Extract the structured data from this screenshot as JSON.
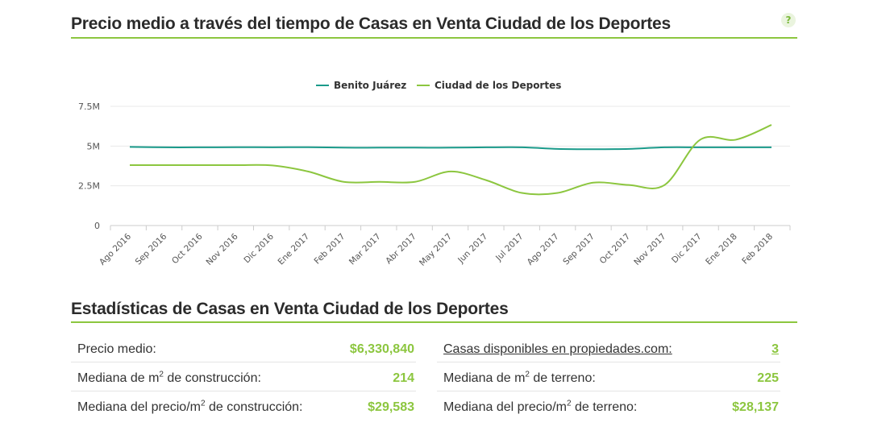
{
  "chart_section": {
    "title": "Precio medio a través del tiempo de Casas en Venta Ciudad de los Deportes",
    "help": "?"
  },
  "chart_data": {
    "type": "line",
    "title": "Precio medio a través del tiempo de Casas en Venta Ciudad de los Deportes",
    "xlabel": "",
    "ylabel": "",
    "x": [
      "Ago 2016",
      "Sep 2016",
      "Oct 2016",
      "Nov 2016",
      "Dic 2016",
      "Ene 2017",
      "Feb 2017",
      "Mar 2017",
      "Abr 2017",
      "May 2017",
      "Jun 2017",
      "Jul 2017",
      "Ago 2017",
      "Sep 2017",
      "Oct 2017",
      "Nov 2017",
      "Dic 2017",
      "Ene 2018",
      "Feb 2018"
    ],
    "series": [
      {
        "name": "Benito Juárez",
        "color": "#1a9a8a",
        "values": [
          4.95,
          4.92,
          4.92,
          4.93,
          4.92,
          4.93,
          4.9,
          4.9,
          4.9,
          4.9,
          4.92,
          4.92,
          4.82,
          4.8,
          4.82,
          4.92,
          4.92,
          4.92,
          4.92
        ]
      },
      {
        "name": "Ciudad de los Deportes",
        "color": "#8cc63f",
        "values": [
          3.8,
          3.8,
          3.8,
          3.8,
          3.78,
          3.4,
          2.75,
          2.75,
          2.75,
          3.4,
          2.85,
          2.05,
          2.05,
          2.7,
          2.55,
          2.55,
          5.4,
          5.4,
          6.33
        ]
      }
    ],
    "yticks": [
      0,
      2.5,
      5,
      7.5
    ],
    "ytick_labels": [
      "0",
      "2.5M",
      "5M",
      "7.5M"
    ],
    "ylim": [
      0,
      7.5
    ],
    "grid": true,
    "legend_position": "top-center"
  },
  "stats_section": {
    "title": "Estadísticas de Casas en Venta Ciudad de los Deportes",
    "left": [
      {
        "label": "Precio medio:",
        "value": "$6,330,840"
      },
      {
        "label_pre": "Mediana de m",
        "sup": "2",
        "label_post": " de construcción:",
        "value": "214"
      },
      {
        "label_pre": "Mediana del precio/m",
        "sup": "2",
        "label_post": " de construcción:",
        "value": "$29,583"
      }
    ],
    "right": [
      {
        "label": "Casas disponibles en propiedades.com:",
        "value": "3"
      },
      {
        "label_pre": "Mediana de m",
        "sup": "2",
        "label_post": " de terreno:",
        "value": "225"
      },
      {
        "label_pre": "Mediana del precio/m",
        "sup": "2",
        "label_post": " de terreno:",
        "value": "$28,137"
      }
    ]
  }
}
